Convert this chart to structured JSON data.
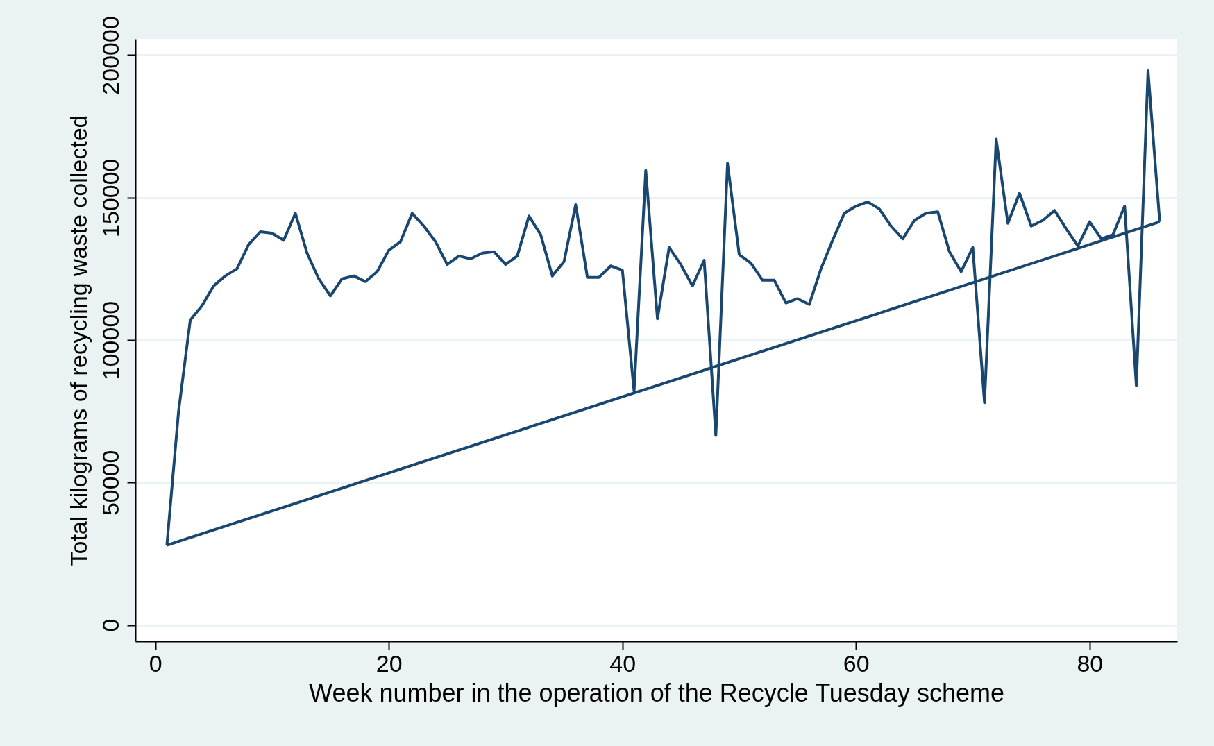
{
  "chart_data": {
    "type": "line",
    "xlabel": "Week number in the operation of the Recycle Tuesday scheme",
    "ylabel": "Total kilograms of recycling waste collected",
    "series": [
      {
        "color": "#1a476f",
        "x": [
          1,
          2,
          3,
          4,
          5,
          6,
          7,
          8,
          9,
          10,
          11,
          12,
          13,
          14,
          15,
          16,
          17,
          18,
          19,
          20,
          21,
          22,
          23,
          24,
          25,
          26,
          27,
          28,
          29,
          30,
          31,
          32,
          33,
          34,
          35,
          36,
          37,
          38,
          39,
          40,
          41,
          42,
          43,
          44,
          45,
          46,
          47,
          48,
          49,
          50,
          51,
          52,
          53,
          54,
          55,
          56,
          57,
          58,
          59,
          60,
          61,
          62,
          63,
          64,
          65,
          66,
          67,
          68,
          69,
          70,
          71,
          72,
          73,
          74,
          75,
          76,
          77,
          78,
          79,
          80,
          81,
          82,
          83,
          84,
          85,
          86
        ],
        "values": [
          28000,
          75000,
          107000,
          112000,
          119000,
          122500,
          125000,
          133500,
          138000,
          137500,
          135000,
          144500,
          130500,
          121500,
          115500,
          121500,
          122500,
          120500,
          124000,
          131500,
          134500,
          144500,
          140000,
          134500,
          126500,
          129500,
          128500,
          130500,
          131000,
          126500,
          129500,
          143500,
          137000,
          122500,
          127500,
          147500,
          122000,
          122000,
          126000,
          124500,
          82000,
          159500,
          107500,
          132500,
          126500,
          119000,
          128000,
          66500,
          162000,
          130000,
          127000,
          121000,
          121000,
          113000,
          114500,
          112500,
          125000,
          135000,
          144500,
          147000,
          148500,
          146000,
          140000,
          135500,
          142000,
          144500,
          145000,
          131000,
          124000,
          132500,
          78000,
          170500,
          141000,
          151500,
          140000,
          142000,
          145500,
          139000,
          133000,
          141500,
          135500,
          137000,
          147000,
          84000,
          194500,
          141500
        ]
      },
      {
        "type": "line",
        "color": "#1a476f",
        "x": [
          1,
          86
        ],
        "values": [
          28000,
          141500
        ]
      }
    ],
    "xlim": [
      -1.7,
      87.5
    ],
    "xticks": [
      0,
      20,
      40,
      60,
      80
    ],
    "ylim": [
      -5700,
      205700
    ],
    "yticks": [
      0,
      50000,
      100000,
      150000,
      200000
    ],
    "grid": "y",
    "line_style": "solid"
  }
}
